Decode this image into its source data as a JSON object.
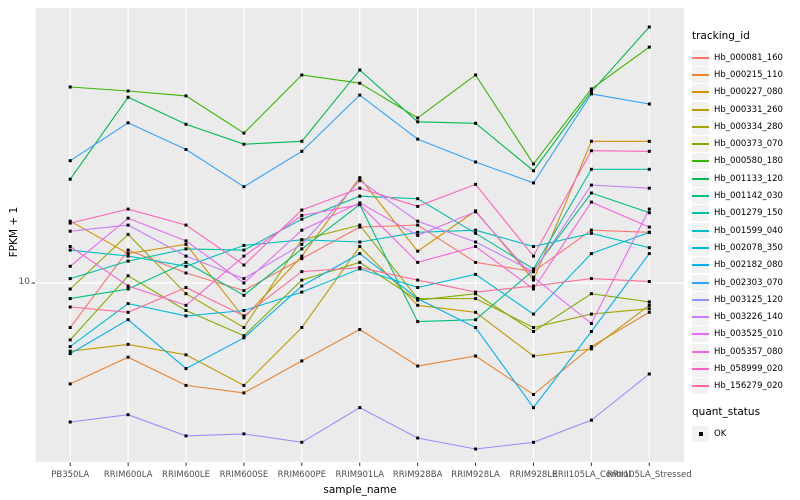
{
  "figure": {
    "background": "#ffffff",
    "panel_background": "#EBEBEB",
    "grid_color": "#FFFFFF",
    "axis_text_color": "#4D4D4D",
    "tick_color": "#333333",
    "point_color": "#000000",
    "legend_key_background": "#F2F2F2"
  },
  "chart_data": {
    "type": "line",
    "xlabel": "sample_name",
    "ylabel": "FPKM + 1",
    "y_scale": "log10",
    "y_ticks": [
      "10"
    ],
    "ylim": [
      3.1,
      64
    ],
    "grid": "major white gridlines on gray panel; vertical line per category; horizontal line at y=10",
    "legend_position": "right",
    "point_shape": "small black square (quant_status = OK)",
    "categories": [
      "PB350LA",
      "RRIM600LA",
      "RRIM600LE",
      "RRIM600SE",
      "RRIM600PE",
      "RRIM901LA",
      "RRIM928BA",
      "RRIM928LA",
      "RRIM928LE",
      "RRII105LA_Control",
      "RRII105LA_Stressed"
    ],
    "legend": {
      "tracking_title": "tracking_id",
      "quant_title": "quant_status",
      "quant_items": [
        "OK"
      ]
    },
    "series": [
      {
        "name": "Hb_000081_160",
        "color": "#F8766D",
        "values": [
          7.4,
          12.5,
          10.7,
          9.5,
          11.8,
          14.6,
          14.8,
          11.5,
          10.8,
          14.3,
          14.1
        ]
      },
      {
        "name": "Hb_000215_110",
        "color": "#EA8331",
        "values": [
          5.05,
          6.05,
          5.0,
          4.75,
          5.9,
          7.3,
          5.7,
          6.1,
          4.7,
          6.5,
          8.2
        ]
      },
      {
        "name": "Hb_000227_080",
        "color": "#D89000",
        "values": [
          15.2,
          12.2,
          13.0,
          7.9,
          12.0,
          20.4,
          12.4,
          16.3,
          10.2,
          26.1,
          26.1
        ]
      },
      {
        "name": "Hb_000331_260",
        "color": "#C09B00",
        "values": [
          6.3,
          6.6,
          6.15,
          5.0,
          7.4,
          12.8,
          8.6,
          8.2,
          6.1,
          6.4,
          8.6
        ]
      },
      {
        "name": "Hb_000334_280",
        "color": "#A3A500",
        "values": [
          9.6,
          13.9,
          9.3,
          7.4,
          13.4,
          14.8,
          9.0,
          9.0,
          7.4,
          8.1,
          8.4
        ]
      },
      {
        "name": "Hb_000373_070",
        "color": "#7CAE00",
        "values": [
          6.8,
          10.5,
          8.3,
          7.0,
          10.2,
          11.5,
          8.9,
          9.3,
          7.2,
          9.3,
          8.8
        ]
      },
      {
        "name": "Hb_000580_180",
        "color": "#39B600",
        "values": [
          37.7,
          36.7,
          35.5,
          27.6,
          40.9,
          38.7,
          30.6,
          40.9,
          22.4,
          37.2,
          49.4
        ]
      },
      {
        "name": "Hb_001133_120",
        "color": "#00BB4E",
        "values": [
          20.2,
          35.2,
          29.3,
          25.6,
          26.1,
          42.3,
          29.8,
          29.5,
          21.4,
          36.5,
          56.6
        ]
      },
      {
        "name": "Hb_001142_030",
        "color": "#00BF7D",
        "values": [
          9.0,
          9.6,
          11.5,
          9.2,
          12.6,
          17.0,
          7.7,
          7.8,
          10.9,
          18.4,
          16.1
        ]
      },
      {
        "name": "Hb_001279_150",
        "color": "#00C1A3",
        "values": [
          10.3,
          11.6,
          12.6,
          12.5,
          15.4,
          18.0,
          17.7,
          14.0,
          11.0,
          21.6,
          21.6
        ]
      },
      {
        "name": "Hb_001599_040",
        "color": "#00BFC4",
        "values": [
          12.5,
          12.0,
          11.2,
          12.9,
          13.4,
          13.2,
          14.1,
          14.3,
          12.8,
          14.0,
          12.7
        ]
      },
      {
        "name": "Hb_002078_350",
        "color": "#00BAE0",
        "values": [
          6.5,
          8.7,
          8.0,
          8.3,
          9.4,
          11.0,
          9.7,
          10.6,
          8.1,
          12.2,
          14.1
        ]
      },
      {
        "name": "Hb_002182_080",
        "color": "#00B0F6",
        "values": [
          6.2,
          7.8,
          5.6,
          6.9,
          9.8,
          12.2,
          9.0,
          7.4,
          4.3,
          7.2,
          12.2
        ]
      },
      {
        "name": "Hb_002303_070",
        "color": "#35A2FF",
        "values": [
          22.9,
          29.6,
          24.7,
          19.2,
          24.4,
          35.7,
          26.5,
          22.7,
          19.7,
          36.0,
          33.6
        ]
      },
      {
        "name": "Hb_003125_120",
        "color": "#9590FF",
        "values": [
          3.9,
          4.1,
          3.55,
          3.6,
          3.4,
          4.3,
          3.5,
          3.25,
          3.4,
          3.95,
          5.4
        ]
      },
      {
        "name": "Hb_003226_140",
        "color": "#C77CFF",
        "values": [
          14.2,
          14.8,
          12.0,
          10.3,
          13.0,
          20.0,
          15.2,
          13.2,
          10.8,
          19.4,
          19.0
        ]
      },
      {
        "name": "Hb_003525_010",
        "color": "#E76BF3",
        "values": [
          11.2,
          15.5,
          13.3,
          10.0,
          14.3,
          17.2,
          13.8,
          16.2,
          10.4,
          7.6,
          16.5
        ]
      },
      {
        "name": "Hb_005357_080",
        "color": "#FA62DB",
        "values": [
          12.8,
          9.8,
          8.6,
          12.0,
          15.8,
          17.0,
          11.5,
          12.8,
          9.6,
          17.3,
          14.6
        ]
      },
      {
        "name": "Hb_058999_020",
        "color": "#FF62BC",
        "values": [
          15.0,
          16.5,
          14.8,
          11.3,
          16.4,
          19.0,
          16.8,
          19.5,
          12.0,
          24.5,
          24.4
        ]
      },
      {
        "name": "Hb_156279_020",
        "color": "#FF6A98",
        "values": [
          8.5,
          8.2,
          9.7,
          8.0,
          10.8,
          11.1,
          10.2,
          9.4,
          9.8,
          10.3,
          10.1
        ]
      }
    ]
  }
}
